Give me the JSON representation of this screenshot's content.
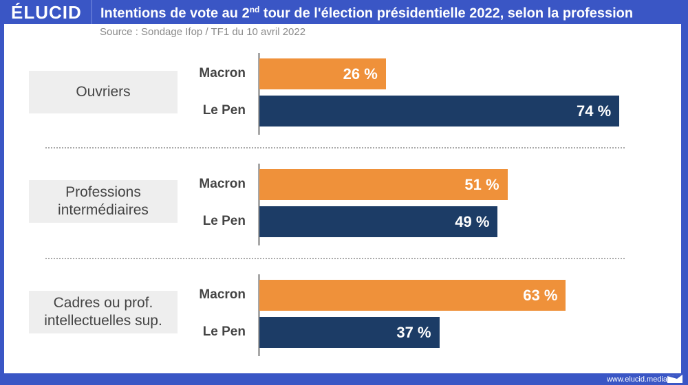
{
  "header": {
    "logo": "ÉLUCID",
    "title_pre": "Intentions de vote au 2",
    "title_sup": "nd",
    "title_post": " tour de l'élection présidentielle 2022, selon la profession",
    "source": "Source : Sondage Ifop / TF1 du 10 avril 2022"
  },
  "footer": {
    "url": "www.elucid.media"
  },
  "colors": {
    "macron": "#ef913a",
    "lepen": "#1c3c66",
    "brand": "#3a56c5"
  },
  "chart_data": {
    "type": "bar",
    "orientation": "horizontal",
    "title": "Intentions de vote au 2nd tour de l'élection présidentielle 2022, selon la profession",
    "subtitle": "Source : Sondage Ifop / TF1 du 10 avril 2022",
    "xlim": [
      0,
      100
    ],
    "unit": "%",
    "categories": [
      "Ouvriers",
      "Professions intermédiaires",
      "Cadres ou prof. intellectuelles sup."
    ],
    "category_lines": [
      [
        "Ouvriers"
      ],
      [
        "Professions",
        "intermédiaires"
      ],
      [
        "Cadres ou prof.",
        "intellectuelles sup."
      ]
    ],
    "series": [
      {
        "name": "Macron",
        "values": [
          26,
          51,
          63
        ]
      },
      {
        "name": "Le Pen",
        "values": [
          74,
          49,
          37
        ]
      }
    ],
    "data_labels": [
      [
        "26 %",
        "74 %"
      ],
      [
        "51 %",
        "49 %"
      ],
      [
        "63 %",
        "37 %"
      ]
    ],
    "grid": false,
    "legend": "none"
  }
}
